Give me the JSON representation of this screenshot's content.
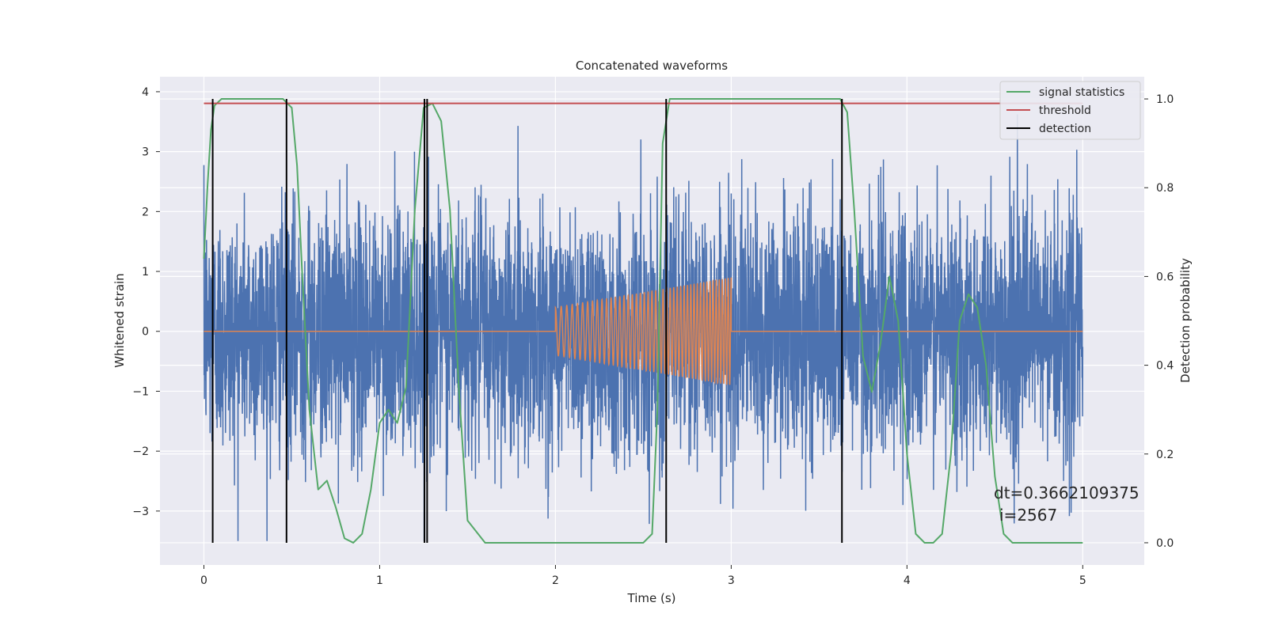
{
  "chart_data": {
    "type": "line",
    "title": "Concatenated waveforms",
    "xlabel": "Time (s)",
    "ylabel": "Whitened strain",
    "y2label": "Detection probability",
    "xlim": [
      -0.25,
      5.35
    ],
    "ylim": [
      -3.9,
      4.25
    ],
    "y2lim": [
      -0.05,
      1.05
    ],
    "x_ticks": [
      0,
      1,
      2,
      3,
      4,
      5
    ],
    "y_ticks": [
      -3,
      -2,
      -1,
      0,
      1,
      2,
      3,
      4
    ],
    "y2_ticks": [
      0.0,
      0.2,
      0.4,
      0.6,
      0.8,
      1.0
    ],
    "x_tick_labels": [
      "0",
      "1",
      "2",
      "3",
      "4",
      "5"
    ],
    "y_tick_labels": [
      "−3",
      "−2",
      "−1",
      "0",
      "1",
      "2",
      "3",
      "4"
    ],
    "y2_tick_labels": [
      "0.0",
      "0.2",
      "0.4",
      "0.6",
      "0.8",
      "1.0"
    ],
    "grid": true,
    "legend_position": "top-right",
    "series": [
      {
        "name": "",
        "kind": "whitened-noise",
        "axis": "left",
        "color": "#4c72b0",
        "x_range": [
          0,
          5
        ],
        "amplitude_sigma": 1.0,
        "amplitude_max": 3.9,
        "amplitude_min": -3.5
      },
      {
        "name": "",
        "kind": "injected-chirp",
        "axis": "left",
        "color": "#dd8452",
        "x_range": [
          0,
          5
        ],
        "chirp_start": 2.0,
        "chirp_end": 3.0,
        "chirp_amplitude_start": 0.4,
        "chirp_amplitude_end": 0.9
      },
      {
        "name": "signal statistics",
        "axis": "right",
        "color": "#55a868",
        "x": [
          0,
          0.02,
          0.04,
          0.06,
          0.1,
          0.15,
          0.3,
          0.45,
          0.5,
          0.53,
          0.56,
          0.6,
          0.65,
          0.7,
          0.75,
          0.8,
          0.85,
          0.9,
          0.95,
          1.0,
          1.05,
          1.1,
          1.15,
          1.2,
          1.25,
          1.3,
          1.35,
          1.4,
          1.45,
          1.5,
          1.6,
          2.0,
          2.5,
          2.55,
          2.58,
          2.61,
          2.65,
          2.7,
          3.0,
          3.5,
          3.62,
          3.66,
          3.7,
          3.75,
          3.8,
          3.85,
          3.9,
          3.95,
          4.0,
          4.05,
          4.1,
          4.15,
          4.2,
          4.25,
          4.3,
          4.35,
          4.4,
          4.45,
          4.5,
          4.55,
          4.6,
          4.7,
          5.0
        ],
        "y": [
          0.64,
          0.8,
          0.93,
          0.985,
          1.0,
          1.0,
          1.0,
          1.0,
          0.98,
          0.85,
          0.6,
          0.3,
          0.12,
          0.14,
          0.08,
          0.01,
          0.0,
          0.02,
          0.12,
          0.27,
          0.3,
          0.27,
          0.35,
          0.75,
          0.98,
          0.99,
          0.95,
          0.75,
          0.35,
          0.05,
          0.0,
          0.0,
          0.0,
          0.02,
          0.3,
          0.9,
          1.0,
          1.0,
          1.0,
          1.0,
          1.0,
          0.97,
          0.75,
          0.42,
          0.34,
          0.45,
          0.6,
          0.5,
          0.2,
          0.02,
          0.0,
          0.0,
          0.02,
          0.2,
          0.5,
          0.56,
          0.53,
          0.4,
          0.15,
          0.02,
          0.0,
          0.0,
          0.0
        ]
      },
      {
        "name": "threshold",
        "axis": "right",
        "color": "#c44e52",
        "x": [
          0,
          5
        ],
        "y": [
          0.99,
          0.99
        ]
      },
      {
        "name": "detection",
        "axis": "right",
        "kind": "vertical-lines",
        "color": "#000000",
        "x": [
          0.05,
          0.47,
          1.255,
          1.27,
          2.63,
          3.63
        ],
        "y_range": [
          0.0,
          1.0
        ]
      }
    ],
    "annotations": {
      "dt": "dt=0.3662109375",
      "i": "i=2567"
    }
  },
  "colors": {
    "background": "#eaeaf2",
    "grid": "#ffffff"
  }
}
